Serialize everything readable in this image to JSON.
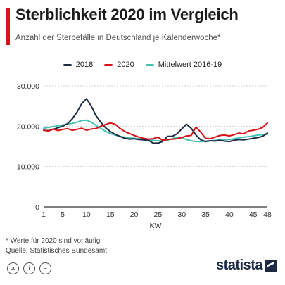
{
  "header": {
    "title": "Sterblichkeit 2020 im Vergleich",
    "subtitle": "Anzahl der Sterbefälle in Deutschland je Kalenderwoche*"
  },
  "legend": [
    {
      "label": "2018",
      "color": "#1d2a44"
    },
    {
      "label": "2020",
      "color": "#d7141a"
    },
    {
      "label": "Mittelwert 2016-19",
      "color": "#46c3b4"
    }
  ],
  "footnotes": {
    "note": "* Werte für 2020 sind vorläufig",
    "source": "Quelle: Statistisches Bundesamt"
  },
  "footer": {
    "brand": "statista",
    "license_icons": [
      "creative-commons-icon",
      "attribution-icon",
      "no-derivatives-icon"
    ]
  },
  "chart_data": {
    "type": "line",
    "title": "Sterblichkeit 2020 im Vergleich",
    "xlabel": "KW",
    "ylabel": "",
    "xlim": [
      1,
      48
    ],
    "ylim": [
      0,
      30000
    ],
    "yticks": [
      0,
      10000,
      20000,
      30000
    ],
    "ytick_labels": [
      "0",
      "10.000",
      "20.000",
      "30.000"
    ],
    "xticks": [
      1,
      5,
      10,
      15,
      20,
      25,
      30,
      35,
      40,
      45,
      48
    ],
    "grid": true,
    "legend_position": "top",
    "x": [
      1,
      2,
      3,
      4,
      5,
      6,
      7,
      8,
      9,
      10,
      11,
      12,
      13,
      14,
      15,
      16,
      17,
      18,
      19,
      20,
      21,
      22,
      23,
      24,
      25,
      26,
      27,
      28,
      29,
      30,
      31,
      32,
      33,
      34,
      35,
      36,
      37,
      38,
      39,
      40,
      41,
      42,
      43,
      44,
      45,
      46,
      47,
      48
    ],
    "series": [
      {
        "name": "2018",
        "color": "#1d2a44",
        "values": [
          19000,
          18900,
          19200,
          19600,
          20000,
          20600,
          21800,
          23500,
          25600,
          26800,
          25000,
          22600,
          21000,
          19600,
          18700,
          18000,
          17500,
          17000,
          16800,
          16900,
          16700,
          16600,
          16500,
          15800,
          15800,
          16200,
          17500,
          17500,
          18100,
          19300,
          20500,
          19500,
          17800,
          16600,
          16200,
          16400,
          16300,
          16500,
          16300,
          16200,
          16500,
          16700,
          16600,
          16800,
          17000,
          17200,
          17500,
          18300
        ]
      },
      {
        "name": "2020",
        "color": "#d7141a",
        "values": [
          19000,
          18800,
          19300,
          18900,
          19200,
          19400,
          19000,
          19200,
          19500,
          19000,
          19300,
          19400,
          20000,
          20400,
          20800,
          20500,
          19500,
          18700,
          18200,
          17700,
          17300,
          17000,
          16800,
          16900,
          17300,
          16500,
          16700,
          16800,
          16900,
          17200,
          17600,
          17700,
          19800,
          18500,
          17000,
          16900,
          17300,
          17700,
          17800,
          17600,
          17900,
          18300,
          18100,
          18800,
          19000,
          19200,
          19700,
          20800
        ]
      },
      {
        "name": "Mittelwert 2016-19",
        "color": "#46c3b4",
        "values": [
          19500,
          19700,
          19900,
          20100,
          20300,
          20500,
          20700,
          21000,
          21400,
          21500,
          21000,
          20200,
          19500,
          18700,
          18200,
          17800,
          17500,
          17300,
          17100,
          17000,
          16900,
          16900,
          16700,
          16500,
          16400,
          16300,
          16500,
          16900,
          17300,
          17200,
          16700,
          16400,
          16200,
          16200,
          16300,
          16400,
          16500,
          16600,
          16700,
          16700,
          16900,
          17100,
          17300,
          17400,
          17600,
          17800,
          17900,
          18000
        ]
      }
    ]
  }
}
